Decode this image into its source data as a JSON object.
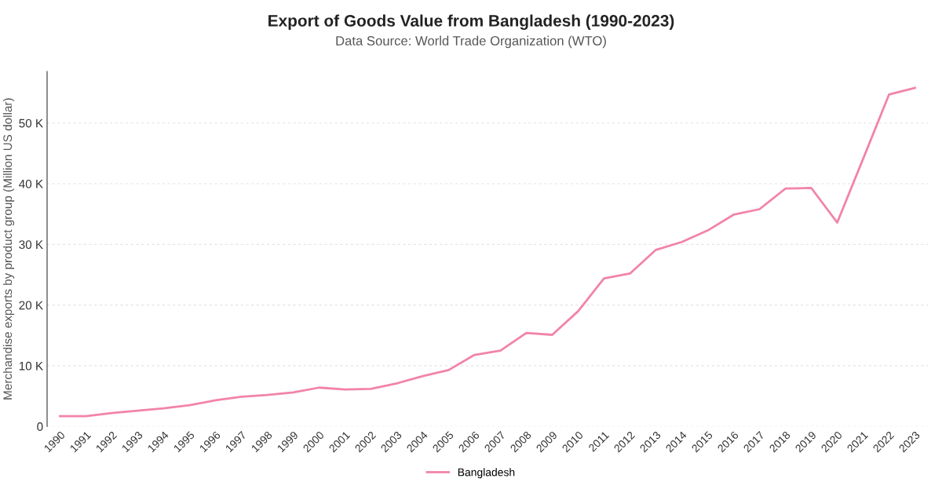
{
  "chart_data": {
    "type": "line",
    "title": "Export of Goods Value from Bangladesh (1990-2023)",
    "subtitle": "Data Source: World Trade Organization (WTO)",
    "ylabel": "Merchandise exports by product group (Million US dollar)",
    "categories": [
      "1990",
      "1991",
      "1992",
      "1993",
      "1994",
      "1995",
      "1996",
      "1997",
      "1998",
      "1999",
      "2000",
      "2001",
      "2002",
      "2003",
      "2004",
      "2005",
      "2006",
      "2007",
      "2008",
      "2009",
      "2010",
      "2011",
      "2012",
      "2013",
      "2014",
      "2015",
      "2016",
      "2017",
      "2018",
      "2019",
      "2020",
      "2021",
      "2022",
      "2023"
    ],
    "series": [
      {
        "name": "Bangladesh",
        "color": "#f283ab",
        "values": [
          1700,
          1700,
          2200,
          2600,
          3000,
          3500,
          4300,
          4900,
          5200,
          5600,
          6400,
          6100,
          6200,
          7100,
          8300,
          9300,
          11800,
          12500,
          15400,
          15100,
          19000,
          24400,
          25200,
          29100,
          30400,
          32300,
          34900,
          35800,
          39200,
          39300,
          33600,
          44100,
          54700,
          55800
        ]
      }
    ],
    "ylim": [
      0,
      58500
    ],
    "yticks": [
      {
        "value": 0,
        "label": "0"
      },
      {
        "value": 10000,
        "label": "10 K"
      },
      {
        "value": 20000,
        "label": "20 K"
      },
      {
        "value": 30000,
        "label": "30 K"
      },
      {
        "value": 40000,
        "label": "40 K"
      },
      {
        "value": 50000,
        "label": "50 K"
      }
    ],
    "grid": "y",
    "legend": "bottom",
    "marker": "none",
    "line_style": "solid"
  }
}
